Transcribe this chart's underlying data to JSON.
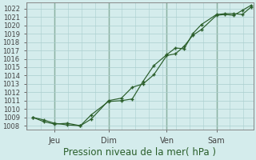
{
  "title": "Pression niveau de la mer( hPa )",
  "ylabel_ticks": [
    1008,
    1009,
    1010,
    1011,
    1012,
    1013,
    1014,
    1015,
    1016,
    1017,
    1018,
    1019,
    1020,
    1021,
    1022
  ],
  "ylim": [
    1007.5,
    1022.7
  ],
  "xlim": [
    0,
    105
  ],
  "background_color": "#d4ecec",
  "grid_color": "#aacece",
  "line_color": "#2a5e2a",
  "xtick_labels": [
    "Jeu",
    "Dim",
    "Ven",
    "Sam"
  ],
  "xtick_positions": [
    13,
    38,
    65,
    88
  ],
  "vline_positions": [
    13,
    38,
    65,
    88
  ],
  "series1_x": [
    3,
    8,
    13,
    19,
    25,
    30,
    38,
    44,
    49,
    54,
    59,
    65,
    69,
    73,
    77,
    81,
    88,
    92,
    96,
    100,
    104
  ],
  "series1_y": [
    1009.0,
    1008.7,
    1008.3,
    1008.1,
    1008.0,
    1008.8,
    1011.0,
    1011.3,
    1012.6,
    1013.0,
    1014.1,
    1016.4,
    1016.6,
    1017.5,
    1018.8,
    1019.5,
    1021.2,
    1021.3,
    1021.2,
    1021.8,
    1022.4
  ],
  "series2_x": [
    3,
    8,
    13,
    19,
    25,
    30,
    38,
    44,
    49,
    54,
    59,
    65,
    69,
    73,
    77,
    81,
    88,
    92,
    96,
    100,
    104
  ],
  "series2_y": [
    1009.0,
    1008.5,
    1008.2,
    1008.3,
    1008.0,
    1009.3,
    1010.9,
    1011.0,
    1011.2,
    1013.3,
    1015.2,
    1016.5,
    1017.3,
    1017.2,
    1019.0,
    1020.1,
    1021.3,
    1021.4,
    1021.4,
    1021.3,
    1022.2
  ],
  "xlabel_color": "#2a5e2a",
  "xlabel_fontsize": 8.5,
  "ytick_fontsize": 6,
  "xtick_fontsize": 7
}
